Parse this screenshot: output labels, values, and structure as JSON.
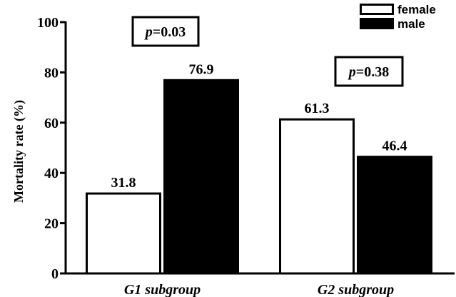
{
  "chart_data": {
    "type": "bar",
    "categories": [
      "G1 subgroup",
      "G2 subgroup"
    ],
    "series": [
      {
        "name": "female",
        "values": [
          31.8,
          61.3
        ],
        "color": "#ffffff",
        "stroke": "#000000"
      },
      {
        "name": "male",
        "values": [
          76.9,
          46.4
        ],
        "color": "#000000",
        "stroke": "#000000"
      }
    ],
    "value_labels": [
      [
        "31.8",
        "61.3"
      ],
      [
        "76.9",
        "46.4"
      ]
    ],
    "ylabel": "Mortality rate (%)",
    "xlabel": "",
    "ylim": [
      0,
      100
    ],
    "yticks": [
      0,
      20,
      40,
      60,
      80,
      100
    ],
    "ytick_labels": [
      "0",
      "20",
      "40",
      "60",
      "80",
      "100"
    ],
    "grid": false,
    "legend_position": "top-right",
    "annotations": [
      {
        "category": "G1 subgroup",
        "italic": "p",
        "text": "=0.03"
      },
      {
        "category": "G2 subgroup",
        "italic": "p",
        "text": "=0.38"
      }
    ]
  }
}
